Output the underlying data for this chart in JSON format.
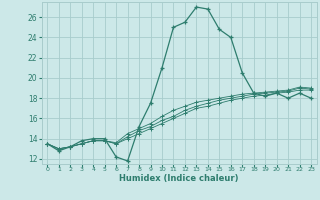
{
  "x": [
    0,
    1,
    2,
    3,
    4,
    5,
    6,
    7,
    8,
    9,
    10,
    11,
    12,
    13,
    14,
    15,
    16,
    17,
    18,
    19,
    20,
    21,
    22,
    23
  ],
  "main_y": [
    13.5,
    12.8,
    13.2,
    13.8,
    14.0,
    14.0,
    12.2,
    11.8,
    15.2,
    17.5,
    21.0,
    25.0,
    25.5,
    27.0,
    26.8,
    24.8,
    24.0,
    20.5,
    18.5,
    18.2,
    18.5,
    18.0,
    18.5,
    18.0
  ],
  "line2_y": [
    13.5,
    13.0,
    13.2,
    13.5,
    13.8,
    13.8,
    13.5,
    14.0,
    14.5,
    15.0,
    15.5,
    16.0,
    16.5,
    17.0,
    17.2,
    17.5,
    17.8,
    18.0,
    18.2,
    18.3,
    18.5,
    18.6,
    18.8,
    18.8
  ],
  "line3_y": [
    13.5,
    13.0,
    13.2,
    13.5,
    13.8,
    13.8,
    13.5,
    14.2,
    14.8,
    15.2,
    15.8,
    16.2,
    16.8,
    17.2,
    17.5,
    17.8,
    18.0,
    18.2,
    18.4,
    18.5,
    18.6,
    18.7,
    19.0,
    18.9
  ],
  "line4_y": [
    13.5,
    13.0,
    13.2,
    13.5,
    13.8,
    13.8,
    13.6,
    14.5,
    15.0,
    15.5,
    16.2,
    16.8,
    17.2,
    17.6,
    17.8,
    18.0,
    18.2,
    18.4,
    18.5,
    18.6,
    18.7,
    18.8,
    19.1,
    19.0
  ],
  "color": "#2e7d6e",
  "bg_color": "#cce8e8",
  "grid_color": "#a8cccc",
  "xlabel": "Humidex (Indice chaleur)",
  "ylim": [
    11.5,
    27.5
  ],
  "xlim": [
    -0.5,
    23.5
  ],
  "yticks": [
    12,
    14,
    16,
    18,
    20,
    22,
    24,
    26
  ],
  "xticks": [
    0,
    1,
    2,
    3,
    4,
    5,
    6,
    7,
    8,
    9,
    10,
    11,
    12,
    13,
    14,
    15,
    16,
    17,
    18,
    19,
    20,
    21,
    22,
    23
  ],
  "xtick_labels": [
    "0",
    "1",
    "2",
    "3",
    "4",
    "5",
    "6",
    "7",
    "8",
    "9",
    "10",
    "11",
    "12",
    "13",
    "14",
    "15",
    "16",
    "17",
    "18",
    "19",
    "20",
    "21",
    "22",
    "23"
  ]
}
